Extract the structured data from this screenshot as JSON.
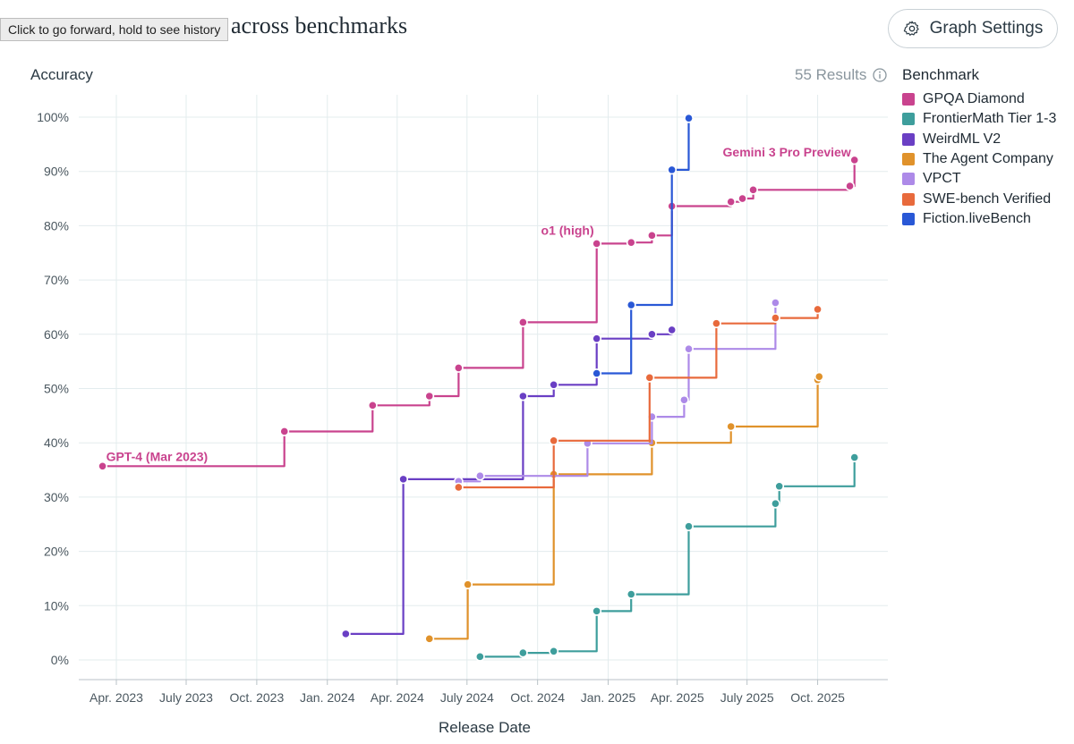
{
  "header": {
    "title": "across benchmarks",
    "tooltip": "Click to go forward, hold to see history",
    "settings_label": "Graph Settings"
  },
  "axes": {
    "ylabel": "Accuracy",
    "xlabel": "Release Date",
    "results": "55 Results"
  },
  "legend": {
    "title": "Benchmark",
    "items": [
      {
        "label": "GPQA Diamond",
        "color": "#c9438e"
      },
      {
        "label": "FrontierMath Tier 1-3",
        "color": "#3e9e9c"
      },
      {
        "label": "WeirdML V2",
        "color": "#6a3fc4"
      },
      {
        "label": "The Agent Company",
        "color": "#e0922b"
      },
      {
        "label": "VPCT",
        "color": "#ad8ae8"
      },
      {
        "label": "SWE-bench Verified",
        "color": "#e86a3c"
      },
      {
        "label": "Fiction.liveBench",
        "color": "#2958d6"
      }
    ]
  },
  "chart_data": {
    "type": "line",
    "step": true,
    "title": "across benchmarks",
    "xlabel": "Release Date",
    "ylabel": "Accuracy",
    "xlim": [
      "2023-02",
      "2025-12"
    ],
    "ylim": [
      0,
      100
    ],
    "y_ticks": [
      0,
      10,
      20,
      30,
      40,
      50,
      60,
      70,
      80,
      90,
      100
    ],
    "y_tick_labels": [
      "0%",
      "10%",
      "20%",
      "30%",
      "40%",
      "50%",
      "60%",
      "70%",
      "80%",
      "90%",
      "100%"
    ],
    "x_ticks": [
      "2023-04",
      "2023-07",
      "2023-10",
      "2024-01",
      "2024-04",
      "2024-07",
      "2024-10",
      "2025-01",
      "2025-04",
      "2025-07",
      "2025-10"
    ],
    "x_tick_labels": [
      "Apr. 2023",
      "July 2023",
      "Oct. 2023",
      "Jan. 2024",
      "Apr. 2024",
      "July 2024",
      "Oct. 2024",
      "Jan. 2025",
      "Apr. 2025",
      "July 2025",
      "Oct. 2025"
    ],
    "series": [
      {
        "name": "GPQA Diamond",
        "color": "#c9438e",
        "points": [
          [
            "2023-03-14",
            35.7
          ],
          [
            "2023-11-06",
            42.1
          ],
          [
            "2024-02-29",
            46.9
          ],
          [
            "2024-05-13",
            48.6
          ],
          [
            "2024-06-20",
            53.8
          ],
          [
            "2024-09-12",
            62.2
          ],
          [
            "2024-12-17",
            76.7
          ],
          [
            "2025-01-31",
            76.9
          ],
          [
            "2025-02-27",
            78.2
          ],
          [
            "2025-03-25",
            83.6
          ],
          [
            "2025-06-10",
            84.4
          ],
          [
            "2025-06-25",
            85.0
          ],
          [
            "2025-07-09",
            86.6
          ],
          [
            "2025-11-12",
            87.3
          ],
          [
            "2025-11-18",
            92.1
          ]
        ]
      },
      {
        "name": "FrontierMath Tier 1-3",
        "color": "#3e9e9c",
        "points": [
          [
            "2024-07-18",
            0.6
          ],
          [
            "2024-09-12",
            1.3
          ],
          [
            "2024-10-22",
            1.6
          ],
          [
            "2024-12-17",
            9.0
          ],
          [
            "2025-01-31",
            12.1
          ],
          [
            "2025-04-16",
            24.6
          ],
          [
            "2025-08-07",
            28.8
          ],
          [
            "2025-08-12",
            32.0
          ],
          [
            "2025-11-18",
            37.3
          ]
        ]
      },
      {
        "name": "WeirdML V2",
        "color": "#6a3fc4",
        "points": [
          [
            "2024-01-25",
            4.8
          ],
          [
            "2024-04-09",
            33.3
          ],
          [
            "2024-09-12",
            48.6
          ],
          [
            "2024-10-22",
            50.7
          ],
          [
            "2024-12-17",
            59.2
          ],
          [
            "2025-02-27",
            60.0
          ],
          [
            "2025-03-25",
            60.8
          ]
        ]
      },
      {
        "name": "The Agent Company",
        "color": "#e0922b",
        "points": [
          [
            "2024-05-13",
            3.9
          ],
          [
            "2024-07-02",
            13.9
          ],
          [
            "2024-10-22",
            34.2
          ],
          [
            "2025-02-27",
            40.0
          ],
          [
            "2025-06-10",
            43.0
          ],
          [
            "2025-10-01",
            51.6
          ],
          [
            "2025-10-03",
            52.2
          ]
        ]
      },
      {
        "name": "VPCT",
        "color": "#ad8ae8",
        "points": [
          [
            "2024-06-20",
            32.9
          ],
          [
            "2024-07-18",
            33.9
          ],
          [
            "2024-12-05",
            39.9
          ],
          [
            "2025-02-27",
            44.8
          ],
          [
            "2025-04-10",
            47.9
          ],
          [
            "2025-04-16",
            57.3
          ],
          [
            "2025-08-07",
            65.8
          ]
        ]
      },
      {
        "name": "SWE-bench Verified",
        "color": "#e86a3c",
        "points": [
          [
            "2024-06-20",
            31.8
          ],
          [
            "2024-10-22",
            40.4
          ],
          [
            "2025-02-24",
            52.0
          ],
          [
            "2025-05-22",
            62.0
          ],
          [
            "2025-08-07",
            63.0
          ],
          [
            "2025-10-01",
            64.6
          ]
        ]
      },
      {
        "name": "Fiction.liveBench",
        "color": "#2958d6",
        "points": [
          [
            "2024-12-17",
            52.8
          ],
          [
            "2025-01-31",
            65.4
          ],
          [
            "2025-03-25",
            90.3
          ],
          [
            "2025-04-16",
            99.8
          ]
        ]
      }
    ],
    "annotations": [
      {
        "text": "GPT-4 (Mar 2023)",
        "series": "GPQA Diamond",
        "date": "2023-03-14",
        "value": 35.7
      },
      {
        "text": "o1 (high)",
        "series": "GPQA Diamond",
        "date": "2024-12-17",
        "value": 76.7
      },
      {
        "text": "Gemini 3 Pro Preview",
        "series": "GPQA Diamond",
        "date": "2025-11-18",
        "value": 92.1
      }
    ]
  }
}
